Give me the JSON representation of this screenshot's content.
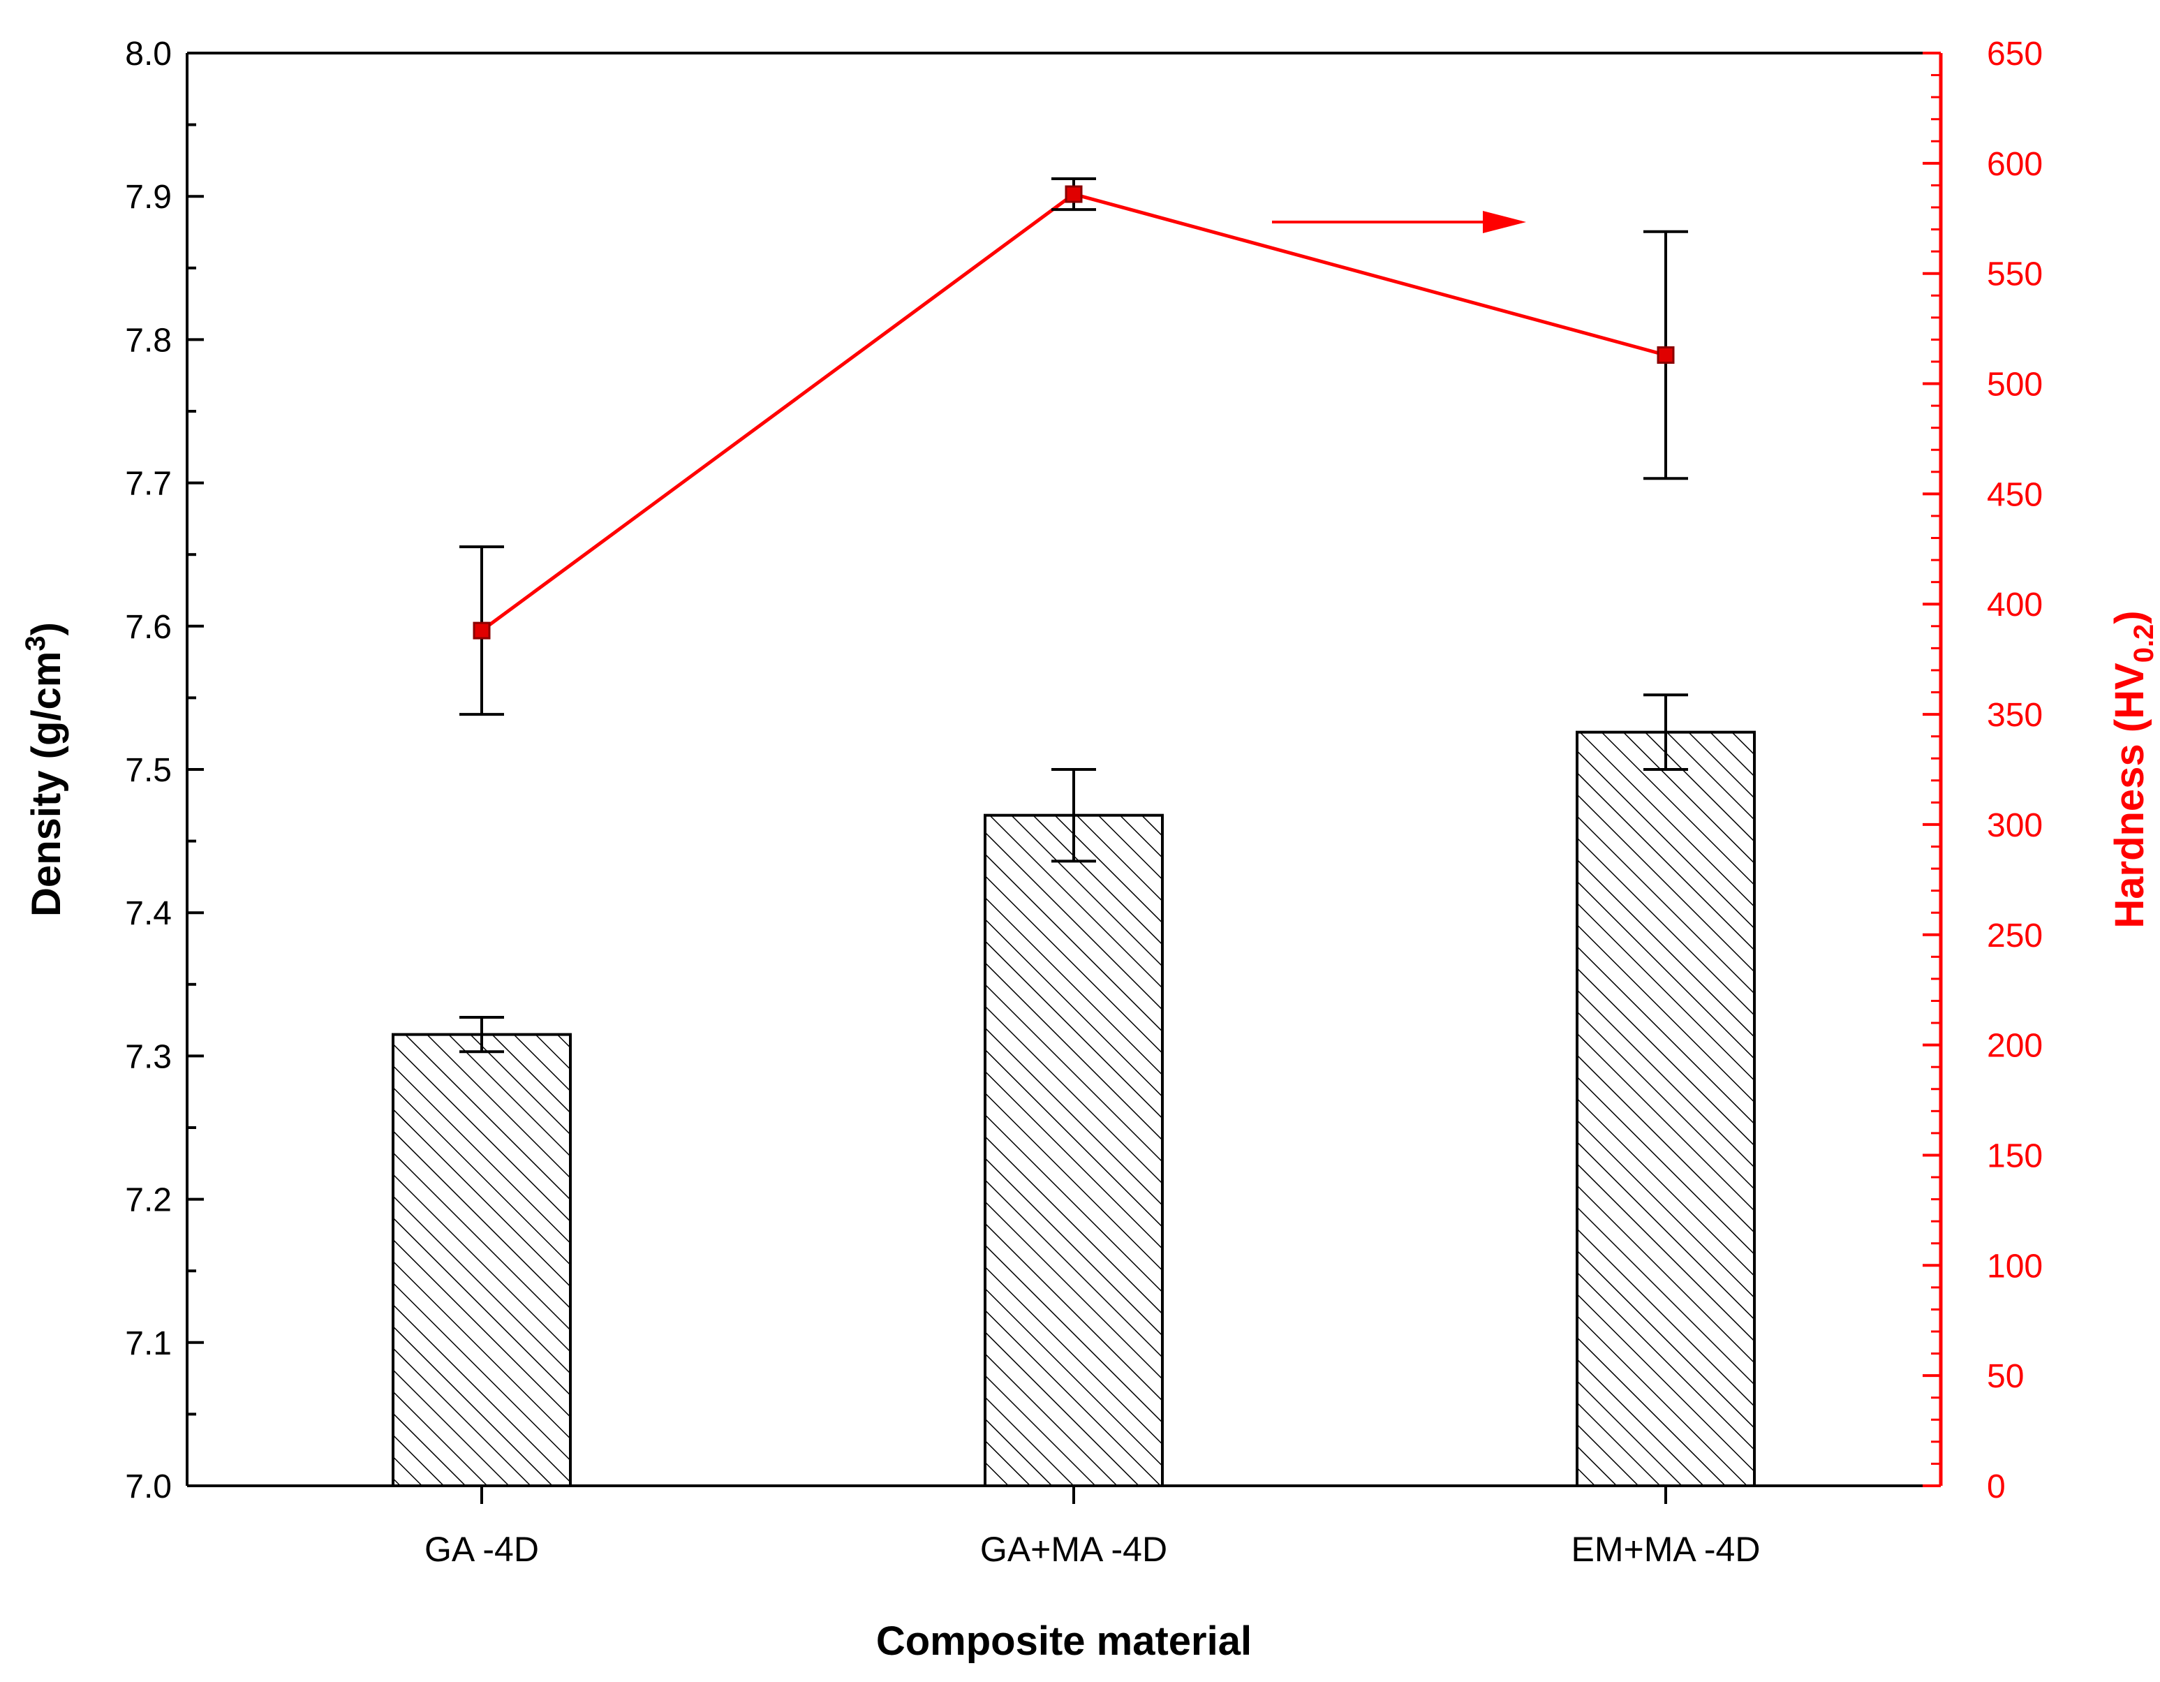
{
  "chart_data": {
    "type": "bar",
    "categories": [
      "GA -4D",
      "GA+MA -4D",
      "EM+MA -4D"
    ],
    "xlabel": "Composite material",
    "ylabel": {
      "main": "Density (g/cm",
      "sup": "3",
      "close": ")"
    },
    "y2label": {
      "main": "Hardness (HV",
      "sub": "0.2",
      "close": ")"
    },
    "ylim": [
      7.0,
      8.0
    ],
    "y_ticks": [
      "7.0",
      "7.1",
      "7.2",
      "7.3",
      "7.4",
      "7.5",
      "7.6",
      "7.7",
      "7.8",
      "7.9",
      "8.0"
    ],
    "y2lim": [
      0,
      650
    ],
    "y2_ticks": [
      "0",
      "50",
      "100",
      "150",
      "200",
      "250",
      "300",
      "350",
      "400",
      "450",
      "500",
      "550",
      "600",
      "650"
    ],
    "series": [
      {
        "name": "Density",
        "kind": "bar",
        "axis": "left",
        "values": [
          7.315,
          7.468,
          7.526
        ],
        "errors": [
          0.012,
          0.032,
          0.026
        ]
      },
      {
        "name": "Hardness",
        "kind": "line",
        "axis": "right",
        "values": [
          388,
          586,
          513
        ],
        "errors": [
          38,
          7,
          56
        ]
      }
    ],
    "colors": {
      "density": "#000000",
      "hardness": "#ff0000",
      "marker_fill": "#e00000"
    },
    "annotation": {
      "type": "arrow",
      "points_to": "right-axis",
      "color": "#ff0000"
    }
  }
}
